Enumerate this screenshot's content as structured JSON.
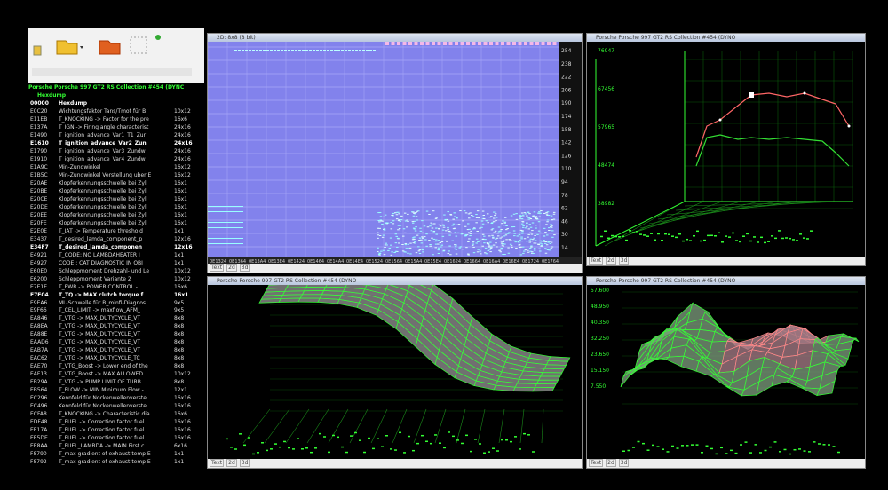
{
  "project": {
    "title": "Porsche  Porsche 997 GT2 RS Collection #454 (DYNC",
    "root": "Hexdump"
  },
  "list": {
    "rows": [
      {
        "address": "00000",
        "name": "Hexdump",
        "size": "",
        "bold": true
      },
      {
        "address": "E0C20",
        "name": "Wichtungsfaktor Tans/Tmot für B",
        "size": "10x12",
        "bold": false
      },
      {
        "address": "E11EB",
        "name": "T_KNOCKING -> Factor for the pre",
        "size": "16x6",
        "bold": false
      },
      {
        "address": "E137A",
        "name": "T_IGN -> Firing angle characterist",
        "size": "24x16",
        "bold": false
      },
      {
        "address": "E1490",
        "name": "T_ignition_advance_Var1_T1_Zur",
        "size": "24x16",
        "bold": false
      },
      {
        "address": "E1610",
        "name": "T_ignition_advance_Var2_Zun",
        "size": "24x16",
        "bold": true
      },
      {
        "address": "E1790",
        "name": "T_ignition_advance_Var3_Zundw",
        "size": "24x16",
        "bold": false
      },
      {
        "address": "E1910",
        "name": "T_ignition_advance_Var4_Zundw",
        "size": "24x16",
        "bold": false
      },
      {
        "address": "E1A9C",
        "name": "Min-Zundwinkel",
        "size": "16x12",
        "bold": false
      },
      {
        "address": "E1B5C",
        "name": "Min-Zundwinkel Verstellung uber E",
        "size": "16x12",
        "bold": false
      },
      {
        "address": "E20AE",
        "name": "Klopferkennungsschwelle bei Zyli",
        "size": "16x1",
        "bold": false
      },
      {
        "address": "E20BE",
        "name": "Klopferkennungsschwelle bei Zyli",
        "size": "16x1",
        "bold": false
      },
      {
        "address": "E20CE",
        "name": "Klopferkennungsschwelle bei Zyli",
        "size": "16x1",
        "bold": false
      },
      {
        "address": "E20DE",
        "name": "Klopferkennungsschwelle bei Zyli",
        "size": "16x1",
        "bold": false
      },
      {
        "address": "E20EE",
        "name": "Klopferkennungsschwelle bei Zyli",
        "size": "16x1",
        "bold": false
      },
      {
        "address": "E20FE",
        "name": "Klopferkennungsschwelle bei Zyli",
        "size": "16x1",
        "bold": false
      },
      {
        "address": "E2E0E",
        "name": "T_IAT -> Temperature threshold",
        "size": "1x1",
        "bold": false
      },
      {
        "address": "E3437",
        "name": "T_desired_lamda_component_p",
        "size": "12x16",
        "bold": false
      },
      {
        "address": "E34F7",
        "name": "T_desired_lamda_componen",
        "size": "12x16",
        "bold": true
      },
      {
        "address": "E4921",
        "name": "T_CODE: NO LAMBDAHEATER I",
        "size": "1x1",
        "bold": false
      },
      {
        "address": "E4927",
        "name": "CODE : CAT DIAGNOSTIC IN OBI",
        "size": "1x1",
        "bold": false
      },
      {
        "address": "E60E0",
        "name": "Schleppmoment Drehzahl- und Le",
        "size": "10x12",
        "bold": false
      },
      {
        "address": "E6200",
        "name": "Schleppmoment Variante 2",
        "size": "10x12",
        "bold": false
      },
      {
        "address": "E7E1E",
        "name": "T_PWR -> POWER CONTROL -",
        "size": "16x6",
        "bold": false
      },
      {
        "address": "E7F04",
        "name": "T_TQ -> MAX clutch torque f",
        "size": "16x1",
        "bold": true
      },
      {
        "address": "E9EA6",
        "name": "ML-Schwelle für B_minfi-Diagnos",
        "size": "9x5",
        "bold": false
      },
      {
        "address": "E9F66",
        "name": "T_CEL_LIMIT -> maxflow_AFM_",
        "size": "9x5",
        "bold": false
      },
      {
        "address": "EA846",
        "name": "T_VTG -> MAX_DUTYCYCLE_VT",
        "size": "8x8",
        "bold": false
      },
      {
        "address": "EA8EA",
        "name": "T_VTG -> MAX_DUTYCYCLE_VT",
        "size": "8x8",
        "bold": false
      },
      {
        "address": "EA88E",
        "name": "T_VTG -> MAX_DUTYCYCLE_VT",
        "size": "8x8",
        "bold": false
      },
      {
        "address": "EAAD6",
        "name": "T_VTG -> MAX_DUTYCYCLE_VT",
        "size": "8x8",
        "bold": false
      },
      {
        "address": "EAB7A",
        "name": "T_VTG -> MAX_DUTYCYCLE_VT",
        "size": "8x8",
        "bold": false
      },
      {
        "address": "EAC62",
        "name": "T_VTG -> MAX_DUTYCYCLE_TC",
        "size": "8x8",
        "bold": false
      },
      {
        "address": "EAE70",
        "name": "T_VTG_Boost -> Lower end of the",
        "size": "8x8",
        "bold": false
      },
      {
        "address": "EAF13",
        "name": "T_VTG_Boost -> MAX ALLOWED",
        "size": "10x12",
        "bold": false
      },
      {
        "address": "EB29A",
        "name": "T_VTG -> PUMP LIMIT OF TURB",
        "size": "8x8",
        "bold": false
      },
      {
        "address": "EB564",
        "name": "T_FLOW -> MIN Minimum Flow -",
        "size": "12x1",
        "bold": false
      },
      {
        "address": "EC296",
        "name": "Kennfeld für Nockenwellenverstel",
        "size": "16x16",
        "bold": false
      },
      {
        "address": "EC496",
        "name": "Kennfeld für Nockenwellenverstel",
        "size": "16x16",
        "bold": false
      },
      {
        "address": "ECFA8",
        "name": "T_KNOCKING -> Characteristic dia",
        "size": "16x6",
        "bold": false
      },
      {
        "address": "EDF48",
        "name": "T_FUEL -> Correction factor fuel",
        "size": "16x16",
        "bold": false
      },
      {
        "address": "EE17A",
        "name": "T_FUEL -> Correction factor fuel",
        "size": "16x16",
        "bold": false
      },
      {
        "address": "EE5DE",
        "name": "T_FUEL -> Correction factor fuel",
        "size": "16x16",
        "bold": false
      },
      {
        "address": "EE8AA",
        "name": "T_FUEL_LAMBDA -> MAIN First c",
        "size": "6x16",
        "bold": false
      },
      {
        "address": "F8790",
        "name": "T_max gradient of exhaust temp E",
        "size": "1x1",
        "bold": false
      },
      {
        "address": "F8792",
        "name": "T_max gradient of exhaust temp E",
        "size": "1x1",
        "bold": false
      }
    ]
  },
  "hex_view": {
    "title": "2D: 8x8 (8 bit)",
    "right_labels": [
      "254",
      "238",
      "222",
      "206",
      "190",
      "174",
      "158",
      "142",
      "126",
      "110",
      "94",
      "78",
      "62",
      "46",
      "30",
      "14"
    ],
    "bottom_labels": [
      "0E1324",
      "0E1364",
      "0E13A4",
      "0E13E4",
      "0E1424",
      "0E1464",
      "0E14A4",
      "0E14E4",
      "0E1524",
      "0E1564",
      "0E15A4",
      "0E15E4",
      "0E1624",
      "0E1664",
      "0E16A4",
      "0E16E4",
      "0E1724",
      "0E1764"
    ],
    "tabs": [
      "Text",
      "2d",
      "3d"
    ]
  },
  "plot_top_right": {
    "title": "Porsche  Porsche 997 GT2 RS Collection #454 (DYNO",
    "y_labels": [
      "76947",
      "67456",
      "57965",
      "48474",
      "38982"
    ],
    "tabs": [
      "Text",
      "2d",
      "3d"
    ]
  },
  "plot_bottom_middle": {
    "title": "Porsche  Porsche 997 GT2 RS Collection #454 (DYNO",
    "tabs": [
      "Text",
      "2d",
      "3d"
    ]
  },
  "plot_bottom_right": {
    "title": "Porsche  Porsche 997 GT2 RS Collection #454 (DYNO",
    "y_labels": [
      "57.600",
      "48.950",
      "40.350",
      "32.250",
      "23.650",
      "15.150",
      "7.550"
    ],
    "tabs": [
      "Text",
      "2d",
      "3d"
    ]
  }
}
